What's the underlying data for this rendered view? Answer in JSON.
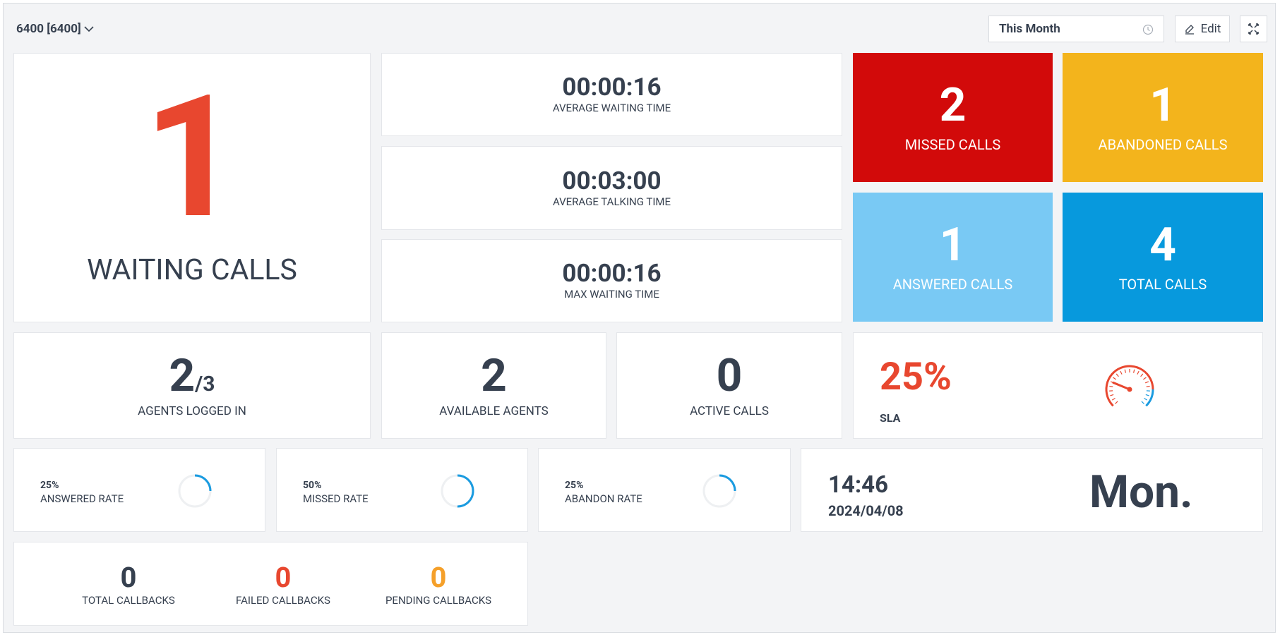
{
  "header": {
    "queue": "6400 [6400]",
    "period": "This Month",
    "edit": "Edit"
  },
  "waiting": {
    "value": "1",
    "label": "WAITING CALLS"
  },
  "times": [
    {
      "value": "00:00:16",
      "label": "AVERAGE WAITING TIME"
    },
    {
      "value": "00:03:00",
      "label": "AVERAGE TALKING TIME"
    },
    {
      "value": "00:00:16",
      "label": "MAX WAITING TIME"
    }
  ],
  "tiles": [
    {
      "value": "2",
      "label": "MISSED CALLS"
    },
    {
      "value": "1",
      "label": "ABANDONED CALLS"
    },
    {
      "value": "1",
      "label": "ANSWERED CALLS"
    },
    {
      "value": "4",
      "label": "TOTAL CALLS"
    }
  ],
  "agents": {
    "logged": "2",
    "total": "/3",
    "label": "AGENTS LOGGED IN"
  },
  "available": {
    "value": "2",
    "label": "AVAILABLE AGENTS"
  },
  "active": {
    "value": "0",
    "label": "ACTIVE CALLS"
  },
  "sla": {
    "value": 25,
    "label": "25%",
    "name": "SLA"
  },
  "rates": [
    {
      "value": 25,
      "label": "25%",
      "name": "ANSWERED RATE"
    },
    {
      "value": 50,
      "label": "50%",
      "name": "MISSED RATE"
    },
    {
      "value": 25,
      "label": "25%",
      "name": "ABANDON RATE"
    }
  ],
  "clock": {
    "time": "14:46",
    "date": "2024/04/08",
    "day": "Mon."
  },
  "callbacks": [
    {
      "value": "0",
      "label": "TOTAL CALLBACKS"
    },
    {
      "value": "0",
      "label": "FAILED CALLBACKS"
    },
    {
      "value": "0",
      "label": "PENDING CALLBACKS"
    }
  ]
}
